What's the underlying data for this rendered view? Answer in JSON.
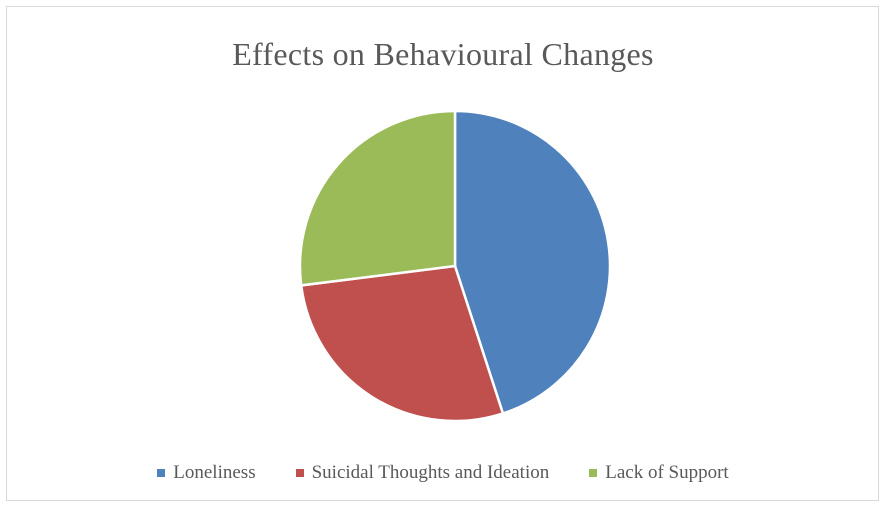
{
  "chart_data": {
    "type": "pie",
    "title": "Effects on Behavioural Changes",
    "categories": [
      "Loneliness",
      "Suicidal Thoughts and Ideation",
      "Lack of Support"
    ],
    "values": [
      45,
      28,
      27
    ],
    "colors": [
      "#4f81bd",
      "#c0504d",
      "#9bbb59"
    ],
    "legend_position": "bottom",
    "start_angle": "12 o'clock, clockwise"
  }
}
